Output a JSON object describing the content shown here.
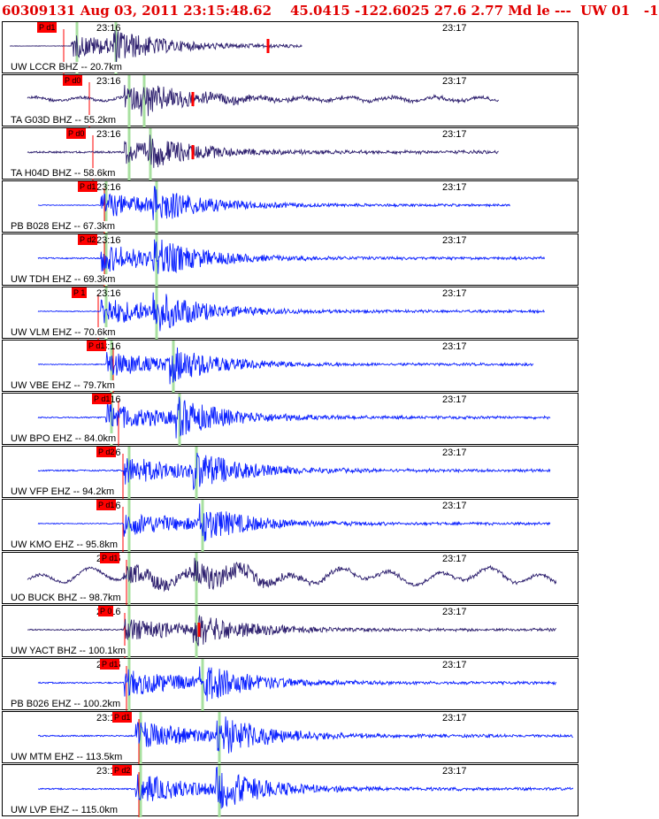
{
  "event": {
    "header": "60309131 Aug 03, 2011 23:15:48.62    45.0415 -122.6025 27.6 2.77 Md le ---  UW 01   -1"
  },
  "time_labels": {
    "t1": "23:16",
    "t2": "23:17"
  },
  "colors": {
    "velocity_trace": "#2d1f6e",
    "short_period_trace": "#0a20ff",
    "pick": "#ff0000",
    "theoretical_phase": "#a8e0a0"
  },
  "traces": [
    {
      "label": "UW LCCR BHZ -- 20.7km",
      "pick": "P d1",
      "kind": "broadband",
      "amp": 20,
      "noise": 0.6,
      "onset": 0.12,
      "s": 0.19,
      "end": 0.52,
      "pickx": 0.06
    },
    {
      "label": "TA G03D BHZ -- 55.2km",
      "pick": "P d0",
      "kind": "broadband",
      "amp": 20,
      "noise": 3,
      "onset": 0.21,
      "s": 0.24,
      "end": 0.86,
      "pickx": 0.105
    },
    {
      "label": "TA H04D BHZ -- 58.6km",
      "pick": "P d0",
      "kind": "broadband",
      "amp": 20,
      "noise": 2,
      "onset": 0.21,
      "s": 0.25,
      "end": 0.86,
      "pickx": 0.11
    },
    {
      "label": "PB B028 EHZ -- 67.3km",
      "pick": "P d1",
      "kind": "sp",
      "amp": 22,
      "noise": 0.8,
      "onset": 0.17,
      "s": 0.26,
      "end": 0.88,
      "pickx": 0.13
    },
    {
      "label": "UW TDH EHZ -- 69.3km",
      "pick": "P d2",
      "kind": "sp",
      "amp": 24,
      "noise": 1.5,
      "onset": 0.17,
      "s": 0.26,
      "end": 0.94,
      "pickx": 0.13
    },
    {
      "label": "UW VLM EHZ -- 70.6km",
      "pick": "P 1",
      "kind": "sp",
      "amp": 25,
      "noise": 1,
      "onset": 0.17,
      "s": 0.26,
      "end": 0.94,
      "pickx": 0.12
    },
    {
      "label": "UW VBE EHZ -- 79.7km",
      "pick": "P d1",
      "kind": "sp",
      "amp": 22,
      "noise": 1,
      "onset": 0.18,
      "s": 0.29,
      "end": 0.92,
      "pickx": 0.145
    },
    {
      "label": "UW BPO EHZ -- 84.0km",
      "pick": "P d1",
      "kind": "sp",
      "amp": 24,
      "noise": 1.5,
      "onset": 0.18,
      "s": 0.3,
      "end": 0.95,
      "pickx": 0.155
    },
    {
      "label": "UW VFP EHZ -- 94.2km",
      "pick": "P d2",
      "kind": "sp",
      "amp": 24,
      "noise": 1.5,
      "onset": 0.21,
      "s": 0.33,
      "end": 0.95,
      "pickx": 0.163
    },
    {
      "label": "UW KMO EHZ -- 95.8km",
      "pick": "P d1",
      "kind": "sp",
      "amp": 22,
      "noise": 1,
      "onset": 0.21,
      "s": 0.34,
      "end": 0.95,
      "pickx": 0.163
    },
    {
      "label": "UO BUCK BHZ -- 98.7km",
      "pick": "P d1",
      "kind": "wander",
      "amp": 18,
      "noise": 12,
      "onset": 0.21,
      "s": 0.33,
      "end": 0.96,
      "pickx": 0.168
    },
    {
      "label": "UW YACT BHZ -- 100.1km",
      "pick": "P 0",
      "kind": "broadband",
      "amp": 20,
      "noise": 1.5,
      "onset": 0.21,
      "s": 0.33,
      "end": 0.96,
      "pickx": 0.165
    },
    {
      "label": "PB B026 EHZ -- 100.2km",
      "pick": "P d1",
      "kind": "sp",
      "amp": 24,
      "noise": 1.5,
      "onset": 0.21,
      "s": 0.34,
      "end": 0.96,
      "pickx": 0.168
    },
    {
      "label": "UW MTM EHZ -- 113.5km",
      "pick": "P d1",
      "kind": "sp",
      "amp": 25,
      "noise": 1.5,
      "onset": 0.23,
      "s": 0.37,
      "end": 0.99,
      "pickx": 0.19
    },
    {
      "label": "UW LVP EHZ -- 115.0km",
      "pick": "P d2",
      "kind": "sp",
      "amp": 25,
      "noise": 1.5,
      "onset": 0.23,
      "s": 0.37,
      "end": 0.99,
      "pickx": 0.19
    }
  ],
  "chart_data": {
    "type": "line",
    "title": "60309131 Aug 03, 2011 23:15:48.62    45.0415 -122.6025 27.6 2.77 Md le ---  UW 01   -1",
    "x_ticks": [
      "23:16",
      "23:17"
    ],
    "series": [
      {
        "name": "UW LCCR BHZ -- 20.7km"
      },
      {
        "name": "TA G03D BHZ -- 55.2km"
      },
      {
        "name": "TA H04D BHZ -- 58.6km"
      },
      {
        "name": "PB B028 EHZ -- 67.3km"
      },
      {
        "name": "UW TDH EHZ -- 69.3km"
      },
      {
        "name": "UW VLM EHZ -- 70.6km"
      },
      {
        "name": "UW VBE EHZ -- 79.7km"
      },
      {
        "name": "UW BPO EHZ -- 84.0km"
      },
      {
        "name": "UW VFP EHZ -- 94.2km"
      },
      {
        "name": "UW KMO EHZ -- 95.8km"
      },
      {
        "name": "UO BUCK BHZ -- 98.7km"
      },
      {
        "name": "UW YACT BHZ -- 100.1km"
      },
      {
        "name": "PB B026 EHZ -- 100.2km"
      },
      {
        "name": "UW MTM EHZ -- 113.5km"
      },
      {
        "name": "UW LVP EHZ -- 115.0km"
      }
    ]
  }
}
